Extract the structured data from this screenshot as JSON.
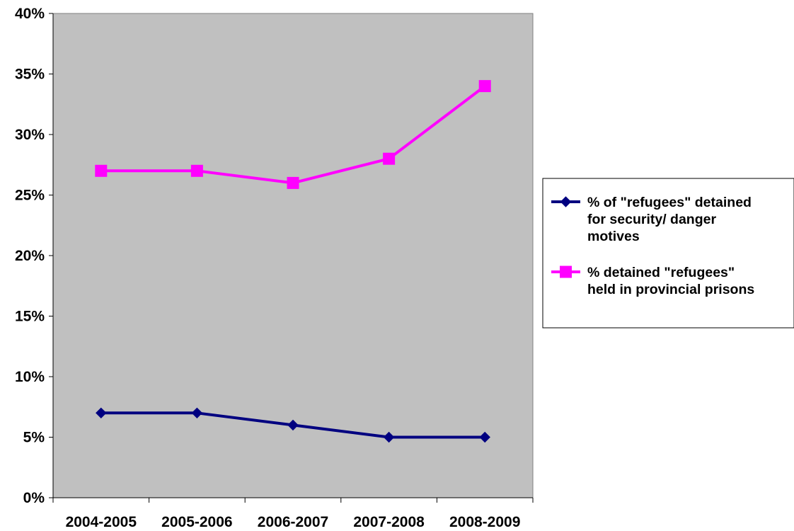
{
  "chart_data": {
    "type": "line",
    "title": "",
    "xlabel": "",
    "ylabel": "",
    "categories": [
      "2004-2005",
      "2005-2006",
      "2006-2007",
      "2007-2008",
      "2008-2009"
    ],
    "ylim": [
      0,
      40
    ],
    "yticks": [
      0,
      5,
      10,
      15,
      20,
      25,
      30,
      35,
      40
    ],
    "ytick_labels": [
      "0%",
      "5%",
      "10%",
      "15%",
      "20%",
      "25%",
      "30%",
      "35%",
      "40%"
    ],
    "grid": false,
    "plot_background": "#c0c0c0",
    "legend_position": "right",
    "series": [
      {
        "name_lines": [
          "% of \"refugees\" detained",
          "for security/ danger",
          "motives"
        ],
        "values": [
          7,
          7,
          6,
          5,
          5
        ],
        "color": "#000080",
        "marker": "diamond"
      },
      {
        "name_lines": [
          "% detained  \"refugees\"",
          "held in provincial prisons"
        ],
        "values": [
          27,
          27,
          26,
          28,
          34
        ],
        "color": "#ff00ff",
        "marker": "square"
      }
    ]
  }
}
